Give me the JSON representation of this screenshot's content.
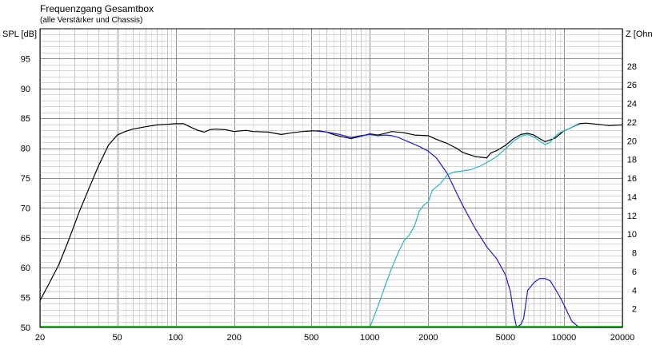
{
  "chart_data": {
    "type": "line",
    "title": "Frequenzgang Gesamtbox",
    "subtitle": "(alle Verstärker und Chassis)",
    "ylabel": "SPL [dB]",
    "y2label": "Z [Ohn",
    "x_scale": "log",
    "xlim": [
      20,
      20000
    ],
    "ylim": [
      50,
      100
    ],
    "y2lim": [
      0,
      32
    ],
    "grid": true,
    "legend": "none",
    "x_ticks": [
      20,
      50,
      100,
      200,
      500,
      1000,
      2000,
      5000,
      10000,
      20000
    ],
    "x_tick_labels": [
      "20",
      "50",
      "100",
      "200",
      "500",
      "1000",
      "2000",
      "5000",
      "10000",
      "20000"
    ],
    "y_ticks": [
      50,
      55,
      60,
      65,
      70,
      75,
      80,
      85,
      90,
      95
    ],
    "y_tick_labels": [
      "50",
      "55",
      "60",
      "65",
      "70",
      "75",
      "80",
      "85",
      "90",
      "95"
    ],
    "y2_ticks": [
      2,
      4,
      6,
      8,
      10,
      12,
      14,
      16,
      18,
      20,
      22,
      24,
      26,
      28
    ],
    "y2_tick_labels": [
      "2",
      "4",
      "6",
      "8",
      "10",
      "12",
      "14",
      "16",
      "18",
      "20",
      "22",
      "24",
      "26",
      "28"
    ],
    "series": [
      {
        "color": "#000000",
        "points": [
          [
            20,
            54.5
          ],
          [
            22,
            57
          ],
          [
            25,
            60.5
          ],
          [
            28,
            64.5
          ],
          [
            32,
            69.5
          ],
          [
            36,
            73.5
          ],
          [
            40,
            77
          ],
          [
            45,
            80.5
          ],
          [
            50,
            82.2
          ],
          [
            55,
            82.8
          ],
          [
            60,
            83.2
          ],
          [
            70,
            83.6
          ],
          [
            80,
            83.9
          ],
          [
            90,
            84
          ],
          [
            100,
            84.1
          ],
          [
            110,
            84.1
          ],
          [
            120,
            83.5
          ],
          [
            130,
            83
          ],
          [
            140,
            82.7
          ],
          [
            150,
            83.1
          ],
          [
            160,
            83.2
          ],
          [
            180,
            83.1
          ],
          [
            200,
            82.8
          ],
          [
            230,
            83
          ],
          [
            250,
            82.8
          ],
          [
            300,
            82.7
          ],
          [
            350,
            82.3
          ],
          [
            400,
            82.6
          ],
          [
            450,
            82.8
          ],
          [
            500,
            82.9
          ],
          [
            550,
            82.9
          ],
          [
            600,
            82.7
          ],
          [
            650,
            82.3
          ],
          [
            700,
            82
          ],
          [
            800,
            81.6
          ],
          [
            900,
            82
          ],
          [
            1000,
            82.4
          ],
          [
            1100,
            82.2
          ],
          [
            1200,
            82.5
          ],
          [
            1300,
            82.8
          ],
          [
            1500,
            82.6
          ],
          [
            1700,
            82.2
          ],
          [
            2000,
            82.1
          ],
          [
            2200,
            81.5
          ],
          [
            2500,
            80.8
          ],
          [
            2800,
            80
          ],
          [
            3000,
            79.3
          ],
          [
            3500,
            78.6
          ],
          [
            4000,
            78.4
          ],
          [
            4200,
            79.2
          ],
          [
            4500,
            79.6
          ],
          [
            5000,
            80.5
          ],
          [
            5500,
            81.6
          ],
          [
            6000,
            82.3
          ],
          [
            6500,
            82.5
          ],
          [
            7000,
            82.2
          ],
          [
            7500,
            81.6
          ],
          [
            8000,
            81.1
          ],
          [
            9000,
            81.7
          ],
          [
            10000,
            82.9
          ],
          [
            11000,
            83.5
          ],
          [
            12000,
            84.1
          ],
          [
            13000,
            84.2
          ],
          [
            15000,
            84
          ],
          [
            17000,
            83.8
          ],
          [
            20000,
            83.9
          ]
        ]
      },
      {
        "color": "#1c1cc8",
        "points": [
          [
            520,
            82.9
          ],
          [
            600,
            82.7
          ],
          [
            700,
            82.3
          ],
          [
            800,
            81.8
          ],
          [
            900,
            82.1
          ],
          [
            1000,
            82.3
          ],
          [
            1100,
            82.1
          ],
          [
            1200,
            82.2
          ],
          [
            1300,
            82.1
          ],
          [
            1400,
            81.8
          ],
          [
            1600,
            81
          ],
          [
            1800,
            80.3
          ],
          [
            2000,
            79.5
          ],
          [
            2200,
            78.4
          ],
          [
            2500,
            75.8
          ],
          [
            2800,
            72.5
          ],
          [
            3000,
            70.5
          ],
          [
            3500,
            66.5
          ],
          [
            4000,
            63.5
          ],
          [
            4500,
            61.5
          ],
          [
            5000,
            58.8
          ],
          [
            5300,
            56
          ],
          [
            5500,
            52.5
          ],
          [
            5700,
            50
          ],
          [
            6000,
            50.5
          ],
          [
            6200,
            51.5
          ],
          [
            6500,
            56.2
          ],
          [
            7000,
            57.5
          ],
          [
            7500,
            58.2
          ],
          [
            8000,
            58.2
          ],
          [
            8500,
            57.8
          ],
          [
            9000,
            56.5
          ],
          [
            9500,
            55.2
          ],
          [
            10000,
            53.8
          ],
          [
            10500,
            52.3
          ],
          [
            11000,
            51
          ],
          [
            12000,
            50
          ],
          [
            15000,
            50
          ],
          [
            20000,
            50
          ]
        ]
      },
      {
        "color": "#2ab4c8",
        "points": [
          [
            1000,
            50
          ],
          [
            1100,
            53.5
          ],
          [
            1200,
            57
          ],
          [
            1300,
            60
          ],
          [
            1400,
            62.5
          ],
          [
            1500,
            64.5
          ],
          [
            1600,
            65.5
          ],
          [
            1700,
            67
          ],
          [
            1800,
            69.5
          ],
          [
            1900,
            70.5
          ],
          [
            2000,
            71
          ],
          [
            2100,
            73
          ],
          [
            2200,
            73.5
          ],
          [
            2300,
            74
          ],
          [
            2500,
            75.5
          ],
          [
            2700,
            76
          ],
          [
            3000,
            76.2
          ],
          [
            3300,
            76.4
          ],
          [
            3700,
            77
          ],
          [
            4000,
            77.6
          ],
          [
            4500,
            78.6
          ],
          [
            5000,
            79.9
          ],
          [
            5500,
            81.2
          ],
          [
            6000,
            82
          ],
          [
            6500,
            82.3
          ],
          [
            7000,
            81.9
          ],
          [
            7500,
            81.2
          ],
          [
            8000,
            80.6
          ],
          [
            8500,
            81
          ],
          [
            9000,
            82
          ],
          [
            9500,
            82.6
          ],
          [
            10000,
            82.9
          ],
          [
            11000,
            83.5
          ],
          [
            12000,
            84
          ]
        ]
      },
      {
        "color": "#00c000",
        "points": [
          [
            20,
            50.15
          ],
          [
            20000,
            50.15
          ]
        ]
      }
    ]
  }
}
